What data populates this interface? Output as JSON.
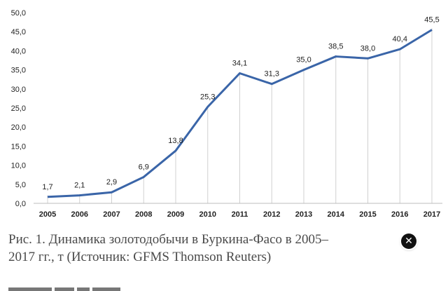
{
  "chart_data": {
    "type": "line",
    "categories": [
      "2005",
      "2006",
      "2007",
      "2008",
      "2009",
      "2010",
      "2011",
      "2012",
      "2013",
      "2014",
      "2015",
      "2016",
      "2017"
    ],
    "values": [
      1.7,
      2.1,
      2.9,
      6.9,
      13.8,
      25.3,
      34.1,
      31.3,
      35.0,
      38.5,
      38.0,
      40.4,
      45.5
    ],
    "value_labels": [
      "1,7",
      "2,1",
      "2,9",
      "6,9",
      "13,8",
      "25,3",
      "34,1",
      "31,3",
      "35,0",
      "38,5",
      "38,0",
      "40,4",
      "45,5"
    ],
    "yticks": [
      "0,0",
      "5,0",
      "10,0",
      "15,0",
      "20,0",
      "25,0",
      "30,0",
      "35,0",
      "40,0",
      "45,0",
      "50,0"
    ],
    "ylim": [
      0,
      50
    ],
    "grid": "vertical",
    "line_color": "#3a65a8",
    "grid_color": "#d0d0d0"
  },
  "caption": "Рис. 1. Динамика золотодобычи в Буркина-Фасо в 2005–2017 гг., т (Источник: GFMS Thomson Reuters)",
  "close_glyph": "✕"
}
